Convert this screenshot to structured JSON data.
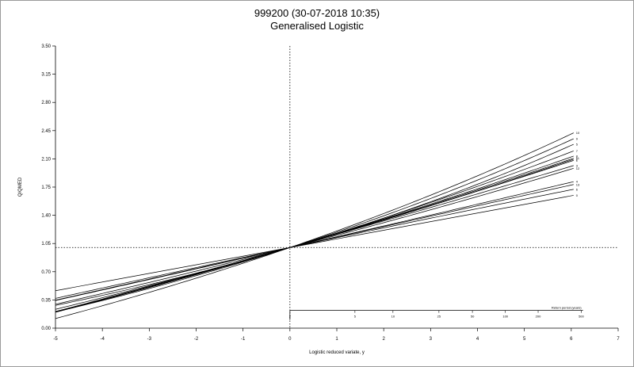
{
  "chart_data": {
    "type": "line",
    "title": "999200 (30-07-2018 10:35)",
    "subtitle": "Generalised Logistic",
    "xlabel": "Logistic reduced variate, y",
    "ylabel": "Q/QMED",
    "xlim": [
      -5,
      7
    ],
    "ylim": [
      0,
      3.5
    ],
    "x_ticks": [
      "-5",
      "-4",
      "-3",
      "-2",
      "-1",
      "0",
      "1",
      "2",
      "3",
      "4",
      "5",
      "6",
      "7"
    ],
    "y_ticks": [
      "0.00",
      "0.35",
      "0.70",
      "1.05",
      "1.40",
      "1.75",
      "2.10",
      "2.45",
      "2.80",
      "3.15",
      "3.50"
    ],
    "grid": false,
    "reference_lines": {
      "x": 0,
      "y": 1
    },
    "return_period_axis": {
      "label": "Return period (years)",
      "ticks": [
        "2",
        "5",
        "10",
        "25",
        "50",
        "100",
        "200",
        "500"
      ],
      "y_level": 0.22
    },
    "series": [
      {
        "label": "10",
        "k": -0.052,
        "beta": 0.2
      },
      {
        "label": "9",
        "k": -0.06,
        "beta": 0.185
      },
      {
        "label": "5",
        "k": -0.07,
        "beta": 0.17
      },
      {
        "label": "7",
        "k": -0.04,
        "beta": 0.175
      },
      {
        "label": "8",
        "k": -0.028,
        "beta": 0.172
      },
      {
        "label": "11",
        "k": -0.024,
        "beta": 0.17
      },
      {
        "label": "1",
        "k": -0.02,
        "beta": 0.168
      },
      {
        "label": "2",
        "k": -0.03,
        "beta": 0.165
      },
      {
        "label": "3",
        "k": -0.01,
        "beta": 0.163
      },
      {
        "label": "12",
        "k": -0.026,
        "beta": 0.15
      },
      {
        "label": "4",
        "k": -0.005,
        "beta": 0.133
      },
      {
        "label": "13",
        "k": 0.002,
        "beta": 0.13
      },
      {
        "label": "6",
        "k": 0.01,
        "beta": 0.123
      },
      {
        "label": "0",
        "k": 0.0,
        "beta": 0.107
      }
    ]
  }
}
